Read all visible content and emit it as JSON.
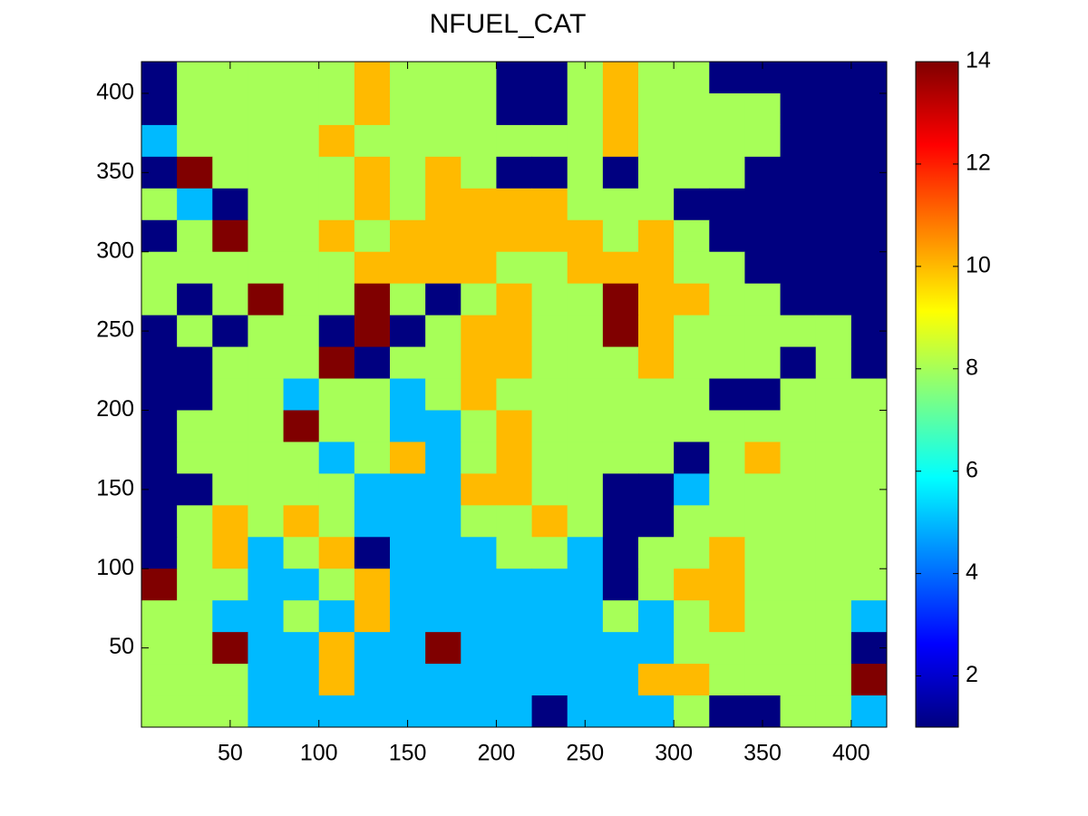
{
  "chart_data": {
    "type": "heatmap",
    "title": "NFUEL_CAT",
    "colormap": "jet",
    "x": [
      10,
      30,
      50,
      70,
      90,
      110,
      130,
      150,
      170,
      190,
      210,
      230,
      250,
      270,
      290,
      310,
      330,
      350,
      370,
      390,
      410
    ],
    "y": [
      410,
      390,
      370,
      350,
      330,
      310,
      290,
      270,
      250,
      230,
      210,
      190,
      170,
      150,
      130,
      110,
      90,
      70,
      50,
      30,
      10
    ],
    "z": [
      [
        1,
        8,
        8,
        8,
        8,
        8,
        10,
        8,
        8,
        8,
        1,
        1,
        8,
        10,
        8,
        8,
        1,
        1,
        1,
        1,
        1
      ],
      [
        1,
        8,
        8,
        8,
        8,
        8,
        10,
        8,
        8,
        8,
        1,
        1,
        8,
        10,
        8,
        8,
        8,
        8,
        1,
        1,
        1
      ],
      [
        5,
        8,
        8,
        8,
        8,
        10,
        8,
        8,
        8,
        8,
        8,
        8,
        8,
        10,
        8,
        8,
        8,
        8,
        1,
        1,
        1
      ],
      [
        1,
        14,
        8,
        8,
        8,
        8,
        10,
        8,
        10,
        8,
        1,
        1,
        8,
        1,
        8,
        8,
        8,
        1,
        1,
        1,
        1
      ],
      [
        8,
        5,
        1,
        8,
        8,
        8,
        10,
        8,
        10,
        10,
        10,
        10,
        8,
        8,
        8,
        1,
        1,
        1,
        1,
        1,
        1
      ],
      [
        1,
        8,
        14,
        8,
        8,
        10,
        8,
        10,
        10,
        10,
        10,
        10,
        10,
        8,
        10,
        8,
        1,
        1,
        1,
        1,
        1
      ],
      [
        8,
        8,
        8,
        8,
        8,
        8,
        10,
        10,
        10,
        10,
        8,
        8,
        10,
        10,
        10,
        8,
        8,
        1,
        1,
        1,
        1
      ],
      [
        8,
        1,
        8,
        14,
        8,
        8,
        14,
        8,
        1,
        8,
        10,
        8,
        8,
        14,
        10,
        10,
        8,
        8,
        1,
        1,
        1
      ],
      [
        1,
        8,
        1,
        8,
        8,
        1,
        14,
        1,
        8,
        10,
        10,
        8,
        8,
        14,
        10,
        8,
        8,
        8,
        8,
        8,
        1
      ],
      [
        1,
        1,
        8,
        8,
        8,
        14,
        1,
        8,
        8,
        10,
        10,
        8,
        8,
        8,
        10,
        8,
        8,
        8,
        1,
        8,
        1
      ],
      [
        1,
        1,
        8,
        8,
        5,
        8,
        8,
        5,
        8,
        10,
        8,
        8,
        8,
        8,
        8,
        8,
        1,
        1,
        8,
        8,
        8
      ],
      [
        1,
        8,
        8,
        8,
        14,
        8,
        8,
        5,
        5,
        8,
        10,
        8,
        8,
        8,
        8,
        8,
        8,
        8,
        8,
        8,
        8
      ],
      [
        1,
        8,
        8,
        8,
        8,
        5,
        8,
        10,
        5,
        8,
        10,
        8,
        8,
        8,
        8,
        1,
        8,
        10,
        8,
        8,
        8
      ],
      [
        1,
        1,
        8,
        8,
        8,
        8,
        5,
        5,
        5,
        10,
        10,
        8,
        8,
        1,
        1,
        5,
        8,
        8,
        8,
        8,
        8
      ],
      [
        1,
        8,
        10,
        8,
        10,
        8,
        5,
        5,
        5,
        8,
        8,
        10,
        8,
        1,
        1,
        8,
        8,
        8,
        8,
        8,
        8
      ],
      [
        1,
        8,
        10,
        5,
        8,
        10,
        1,
        5,
        5,
        5,
        8,
        8,
        5,
        1,
        8,
        8,
        10,
        8,
        8,
        8,
        8
      ],
      [
        14,
        8,
        8,
        5,
        5,
        8,
        10,
        5,
        5,
        5,
        5,
        5,
        5,
        1,
        8,
        10,
        10,
        8,
        8,
        8,
        8
      ],
      [
        8,
        8,
        5,
        5,
        8,
        5,
        10,
        5,
        5,
        5,
        5,
        5,
        5,
        8,
        5,
        8,
        10,
        8,
        8,
        8,
        5
      ],
      [
        8,
        8,
        14,
        5,
        5,
        10,
        5,
        5,
        14,
        5,
        5,
        5,
        5,
        5,
        5,
        8,
        8,
        8,
        8,
        8,
        1
      ],
      [
        8,
        8,
        8,
        5,
        5,
        10,
        5,
        5,
        5,
        5,
        5,
        5,
        5,
        5,
        10,
        10,
        8,
        8,
        8,
        8,
        14
      ],
      [
        8,
        8,
        8,
        5,
        5,
        5,
        5,
        5,
        5,
        5,
        5,
        1,
        5,
        5,
        5,
        8,
        1,
        1,
        8,
        8,
        5
      ]
    ],
    "xlim": [
      0,
      420
    ],
    "ylim": [
      0,
      420
    ],
    "xticks": [
      50,
      100,
      150,
      200,
      250,
      300,
      350,
      400
    ],
    "yticks": [
      50,
      100,
      150,
      200,
      250,
      300,
      350,
      400
    ],
    "colorbar": {
      "clim": [
        1,
        14
      ],
      "ticks": [
        2,
        4,
        6,
        8,
        10,
        12,
        14
      ]
    }
  }
}
